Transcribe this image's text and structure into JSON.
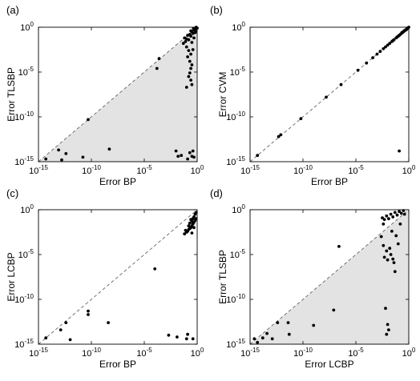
{
  "chart_data": [
    {
      "panel": "(a)",
      "type": "scatter",
      "xlabel": "Error BP",
      "ylabel": "Error TLSBP",
      "xscale": "log",
      "yscale": "log",
      "xlim": [
        1e-15,
        1
      ],
      "ylim": [
        1e-15,
        1
      ],
      "ticks": [
        "-15",
        "-10",
        "-5",
        "0"
      ],
      "shade": "below-diagonal",
      "points_log10": [
        [
          -14.3,
          -14.7
        ],
        [
          -13.1,
          -13.7
        ],
        [
          -12.4,
          -14.1
        ],
        [
          -12.8,
          -14.8
        ],
        [
          -10.8,
          -14.5
        ],
        [
          -10.3,
          -10.3
        ],
        [
          -8.3,
          -13.6
        ],
        [
          -3.8,
          -4.6
        ],
        [
          -3.6,
          -3.5
        ],
        [
          -2.0,
          -13.8
        ],
        [
          -1.8,
          -14.4
        ],
        [
          -1.5,
          -14.3
        ],
        [
          -1.2,
          -1.2
        ],
        [
          -1.1,
          -1.6
        ],
        [
          -1.0,
          -1.3
        ],
        [
          -0.9,
          -0.9
        ],
        [
          -1.3,
          -1.8
        ],
        [
          -1.0,
          -2.2
        ],
        [
          -0.8,
          -1.4
        ],
        [
          -0.7,
          -0.8
        ],
        [
          -0.6,
          -1.0
        ],
        [
          -0.5,
          -0.5
        ],
        [
          -0.4,
          -0.7
        ],
        [
          -0.3,
          -0.3
        ],
        [
          -0.2,
          -0.6
        ],
        [
          -0.5,
          -1.7
        ],
        [
          -0.3,
          -1.2
        ],
        [
          -0.4,
          -2.5
        ],
        [
          -0.8,
          -2.6
        ],
        [
          -0.6,
          -3.0
        ],
        [
          -0.9,
          -3.3
        ],
        [
          -0.7,
          -3.8
        ],
        [
          -0.5,
          -4.2
        ],
        [
          -0.6,
          -4.6
        ],
        [
          -0.7,
          -5.1
        ],
        [
          -0.8,
          -5.5
        ],
        [
          -0.6,
          -5.9
        ],
        [
          -0.5,
          -6.4
        ],
        [
          -1.0,
          -6.7
        ],
        [
          -0.7,
          -14.0
        ],
        [
          -0.5,
          -14.4
        ],
        [
          -0.3,
          -14.5
        ],
        [
          -0.9,
          -14.7
        ],
        [
          -0.4,
          -13.8
        ],
        [
          0.0,
          -0.1
        ],
        [
          -0.1,
          0.0
        ],
        [
          -0.2,
          -0.2
        ],
        [
          -0.15,
          -0.45
        ],
        [
          -0.35,
          -0.15
        ],
        [
          -0.6,
          -0.4
        ]
      ]
    },
    {
      "panel": "(b)",
      "type": "scatter",
      "xlabel": "Error BP",
      "ylabel": "Error CVM",
      "xscale": "log",
      "yscale": "log",
      "xlim": [
        1e-15,
        1
      ],
      "ylim": [
        1e-15,
        1
      ],
      "ticks": [
        "-15",
        "-10",
        "-5",
        "0"
      ],
      "shade": "none",
      "points_log10": [
        [
          -14.3,
          -14.3
        ],
        [
          -12.3,
          -12.2
        ],
        [
          -12.1,
          -12.0
        ],
        [
          -10.2,
          -10.2
        ],
        [
          -7.8,
          -7.8
        ],
        [
          -6.4,
          -6.4
        ],
        [
          -0.9,
          -13.8
        ],
        [
          -4.8,
          -4.8
        ],
        [
          -4.0,
          -4.0
        ],
        [
          -3.4,
          -3.4
        ],
        [
          -3.0,
          -3.0
        ],
        [
          -2.7,
          -2.7
        ],
        [
          -2.4,
          -2.4
        ],
        [
          -2.2,
          -2.2
        ],
        [
          -2.0,
          -2.0
        ],
        [
          -1.8,
          -1.8
        ],
        [
          -1.6,
          -1.6
        ],
        [
          -1.5,
          -1.5
        ],
        [
          -1.4,
          -1.4
        ],
        [
          -1.2,
          -1.2
        ],
        [
          -1.1,
          -1.1
        ],
        [
          -1.0,
          -1.0
        ],
        [
          -0.9,
          -0.9
        ],
        [
          -0.8,
          -0.8
        ],
        [
          -0.7,
          -0.7
        ],
        [
          -0.6,
          -0.6
        ],
        [
          -0.5,
          -0.5
        ],
        [
          -0.4,
          -0.4
        ],
        [
          -0.3,
          -0.3
        ],
        [
          -0.2,
          -0.2
        ],
        [
          -0.1,
          -0.1
        ],
        [
          0.0,
          0.0
        ],
        [
          -0.65,
          -0.6
        ],
        [
          -0.45,
          -0.4
        ],
        [
          -0.25,
          -0.3
        ]
      ]
    },
    {
      "panel": "(c)",
      "type": "scatter",
      "xlabel": "Error BP",
      "ylabel": "Error LCBP",
      "xscale": "log",
      "yscale": "log",
      "xlim": [
        1e-15,
        1
      ],
      "ylim": [
        1e-15,
        1
      ],
      "ticks": [
        "-15",
        "-10",
        "-5",
        "0"
      ],
      "shade": "none",
      "points_log10": [
        [
          -14.3,
          -14.3
        ],
        [
          -12.9,
          -13.4
        ],
        [
          -12.4,
          -12.6
        ],
        [
          -12.0,
          -14.5
        ],
        [
          -10.3,
          -11.7
        ],
        [
          -10.3,
          -11.3
        ],
        [
          -8.4,
          -12.6
        ],
        [
          -4.0,
          -6.6
        ],
        [
          -2.7,
          -14.0
        ],
        [
          -1.9,
          -14.2
        ],
        [
          -1.0,
          -14.4
        ],
        [
          -0.9,
          -13.9
        ],
        [
          -0.4,
          -14.4
        ],
        [
          -1.2,
          -2.7
        ],
        [
          -1.0,
          -2.5
        ],
        [
          -0.9,
          -2.4
        ],
        [
          -0.8,
          -2.2
        ],
        [
          -0.7,
          -2.1
        ],
        [
          -0.6,
          -2.0
        ],
        [
          -0.5,
          -1.8
        ],
        [
          -0.4,
          -1.6
        ],
        [
          -0.3,
          -1.4
        ],
        [
          -0.2,
          -1.2
        ],
        [
          -0.1,
          -1.0
        ],
        [
          -0.7,
          -1.5
        ],
        [
          -0.5,
          -1.3
        ],
        [
          -0.3,
          -0.8
        ],
        [
          -0.2,
          -0.5
        ],
        [
          -0.1,
          -0.3
        ],
        [
          -0.4,
          -1.0
        ],
        [
          -0.6,
          -1.1
        ],
        [
          -0.8,
          -1.8
        ],
        [
          -1.1,
          -2.3
        ],
        [
          -0.3,
          -2.0
        ],
        [
          -0.5,
          -2.6
        ]
      ]
    },
    {
      "panel": "(d)",
      "type": "scatter",
      "xlabel": "Error LCBP",
      "ylabel": "Error TLSBP",
      "xscale": "log",
      "yscale": "log",
      "xlim": [
        1e-15,
        1
      ],
      "ylim": [
        1e-15,
        1
      ],
      "ticks": [
        "-15",
        "-10",
        "-5",
        "0"
      ],
      "shade": "below-diagonal",
      "points_log10": [
        [
          -14.6,
          -14.4
        ],
        [
          -14.3,
          -14.8
        ],
        [
          -13.8,
          -14.3
        ],
        [
          -13.4,
          -13.8
        ],
        [
          -12.9,
          -14.4
        ],
        [
          -12.4,
          -12.6
        ],
        [
          -11.4,
          -12.6
        ],
        [
          -11.3,
          -13.9
        ],
        [
          -9.0,
          -12.9
        ],
        [
          -6.6,
          -4.1
        ],
        [
          -7.1,
          -11.2
        ],
        [
          -2.6,
          -3.0
        ],
        [
          -2.4,
          -4.0
        ],
        [
          -2.3,
          -5.3
        ],
        [
          -2.1,
          -4.6
        ],
        [
          -2.0,
          -5.6
        ],
        [
          -1.8,
          -4.3
        ],
        [
          -1.7,
          -5.0
        ],
        [
          -1.5,
          -5.5
        ],
        [
          -1.4,
          -5.9
        ],
        [
          -1.3,
          -6.9
        ],
        [
          -2.2,
          -11.0
        ],
        [
          -2.0,
          -12.8
        ],
        [
          -1.9,
          -13.4
        ],
        [
          -2.1,
          -13.9
        ],
        [
          -2.5,
          -0.9
        ],
        [
          -2.3,
          -1.1
        ],
        [
          -2.1,
          -0.7
        ],
        [
          -1.9,
          -1.0
        ],
        [
          -1.7,
          -0.5
        ],
        [
          -1.5,
          -0.8
        ],
        [
          -1.3,
          -0.3
        ],
        [
          -1.1,
          -0.6
        ],
        [
          -0.9,
          -0.2
        ],
        [
          -0.7,
          -0.4
        ],
        [
          -0.5,
          -0.1
        ],
        [
          -0.4,
          -0.5
        ],
        [
          -1.6,
          -2.4
        ],
        [
          -1.2,
          -2.9
        ],
        [
          -0.8,
          -1.6
        ],
        [
          -2.4,
          -1.6
        ],
        [
          -1.0,
          -3.8
        ]
      ]
    }
  ]
}
